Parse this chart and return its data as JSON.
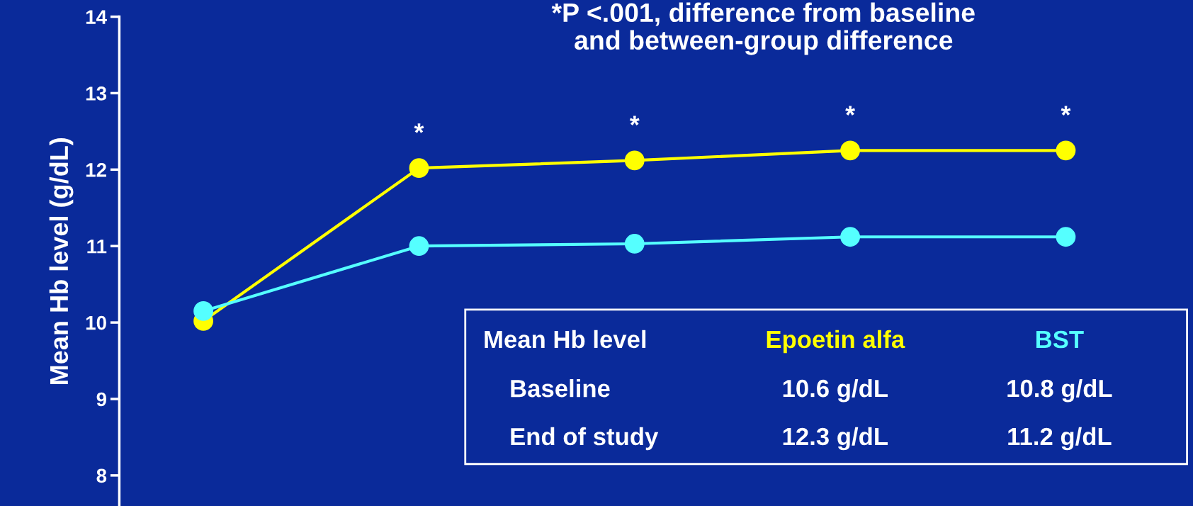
{
  "chart_data": {
    "type": "line",
    "title": "*P <.001, difference from baseline\nand between-group difference",
    "ylabel": "Mean Hb level (g/dL)",
    "categories": [
      null,
      null,
      null,
      null,
      null
    ],
    "series": [
      {
        "name": "Epoetin alfa",
        "color": "#ffff00",
        "values": [
          10.02,
          12.02,
          12.12,
          12.25,
          12.25
        ]
      },
      {
        "name": "BST",
        "color": "#55ffff",
        "values": [
          10.15,
          11.0,
          11.03,
          11.12,
          11.12
        ]
      }
    ],
    "ylim": [
      7.6,
      14
    ],
    "yticks": [
      8,
      9,
      10,
      11,
      12,
      13,
      14
    ],
    "tick_labels": "y",
    "grid": false,
    "legend": false,
    "marker": "circle",
    "line_style": "solid",
    "annotations": [
      "*",
      "*",
      "*",
      "*",
      "Mean Hb level",
      "Baseline",
      "10.6 g/dL",
      "10.8 g/dL",
      "End of study",
      "12.3 g/dL",
      "11.2 g/dL"
    ]
  }
}
